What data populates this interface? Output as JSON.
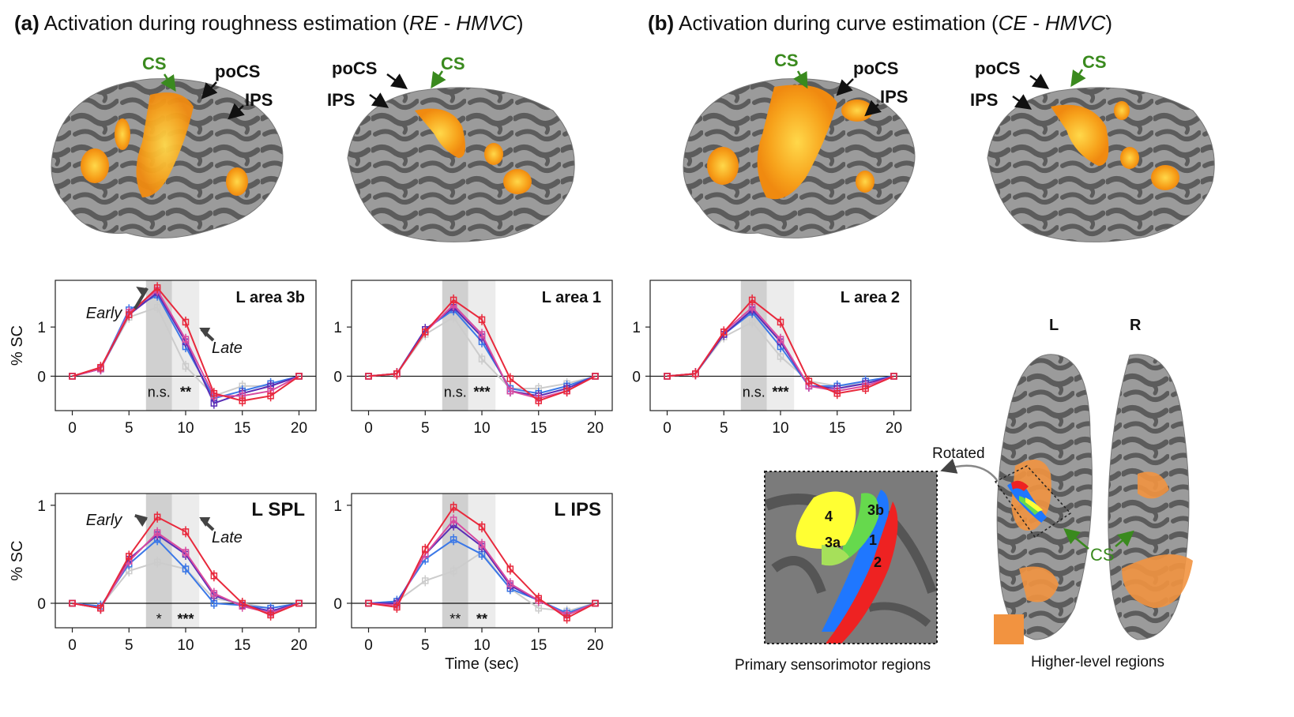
{
  "panel_a": {
    "letter": "(a)",
    "title": "Activation during roughness estimation (",
    "contrast": "RE - HMVC",
    "close": ")"
  },
  "panel_b": {
    "letter": "(b)",
    "title": "Activation during curve estimation (",
    "contrast": "CE - HMVC",
    "close": ")"
  },
  "brain_labels": {
    "cs": "CS",
    "pocs": "poCS",
    "ips": "IPS"
  },
  "colors": {
    "cs_green": "#3a8a1e",
    "activation": "#f7a21b",
    "cortex_light": "#9a9a9a",
    "cortex_dark": "#5a5a5a",
    "area_4": "#ffff33",
    "area_3a": "#a6e05a",
    "area_3b": "#66d94d",
    "area_1": "#1f77ff",
    "area_2": "#ee2222",
    "higher": "#f29340"
  },
  "axes": {
    "ylabel": "% SC",
    "xlabel": "Time (sec)",
    "xticks": [
      "0",
      "5",
      "10",
      "15",
      "20"
    ]
  },
  "chart_data": [
    {
      "type": "line",
      "title": "L area 3b",
      "x": [
        0,
        2.5,
        5,
        7.5,
        10,
        12.5,
        15,
        17.5,
        20
      ],
      "ylim": [
        -0.7,
        1.95
      ],
      "yticks": [
        "0",
        "1"
      ],
      "annotations": {
        "early": "Early",
        "late": "Late",
        "sig_early": "n.s.",
        "sig_late": "**"
      },
      "series": [
        {
          "color": "#cccccc",
          "values": [
            0,
            0.15,
            1.2,
            1.4,
            0.2,
            -0.4,
            -0.2,
            -0.2,
            0
          ]
        },
        {
          "color": "#3b78e7",
          "values": [
            0,
            0.15,
            1.35,
            1.65,
            0.6,
            -0.45,
            -0.3,
            -0.15,
            0
          ]
        },
        {
          "color": "#5a2db5",
          "values": [
            0,
            0.15,
            1.25,
            1.7,
            0.7,
            -0.55,
            -0.35,
            -0.2,
            0
          ]
        },
        {
          "color": "#d94ba0",
          "values": [
            0,
            0.15,
            1.3,
            1.75,
            0.75,
            -0.4,
            -0.4,
            -0.3,
            0
          ]
        },
        {
          "color": "#e8293c",
          "values": [
            0,
            0.18,
            1.25,
            1.8,
            1.1,
            -0.35,
            -0.5,
            -0.4,
            0
          ]
        }
      ]
    },
    {
      "type": "line",
      "title": "L area 1",
      "x": [
        0,
        2.5,
        5,
        7.5,
        10,
        12.5,
        15,
        17.5,
        20
      ],
      "ylim": [
        -0.7,
        1.95
      ],
      "yticks": [
        "0",
        "1"
      ],
      "annotations": {
        "sig_early": "n.s.",
        "sig_late": "***"
      },
      "series": [
        {
          "color": "#cccccc",
          "values": [
            0,
            0.05,
            0.85,
            1.2,
            0.35,
            -0.25,
            -0.25,
            -0.15,
            0
          ]
        },
        {
          "color": "#3b78e7",
          "values": [
            0,
            0.05,
            0.95,
            1.35,
            0.7,
            -0.25,
            -0.35,
            -0.2,
            0
          ]
        },
        {
          "color": "#5a2db5",
          "values": [
            0,
            0.05,
            0.95,
            1.4,
            0.8,
            -0.3,
            -0.4,
            -0.25,
            0
          ]
        },
        {
          "color": "#d94ba0",
          "values": [
            0,
            0.05,
            0.9,
            1.45,
            0.85,
            -0.3,
            -0.45,
            -0.3,
            0
          ]
        },
        {
          "color": "#e8293c",
          "values": [
            0,
            0.05,
            0.9,
            1.55,
            1.15,
            -0.05,
            -0.5,
            -0.3,
            0
          ]
        }
      ]
    },
    {
      "type": "line",
      "title": "L area 2",
      "x": [
        0,
        2.5,
        5,
        7.5,
        10,
        12.5,
        15,
        17.5,
        20
      ],
      "ylim": [
        -0.7,
        1.95
      ],
      "yticks": [
        "0",
        "1"
      ],
      "annotations": {
        "sig_early": "n.s.",
        "sig_late": "***"
      },
      "series": [
        {
          "color": "#cccccc",
          "values": [
            0,
            0.05,
            0.8,
            1.1,
            0.4,
            -0.1,
            -0.2,
            -0.15,
            0
          ]
        },
        {
          "color": "#3b78e7",
          "values": [
            0,
            0.05,
            0.85,
            1.3,
            0.6,
            -0.2,
            -0.2,
            -0.1,
            0
          ]
        },
        {
          "color": "#5a2db5",
          "values": [
            0,
            0.05,
            0.85,
            1.35,
            0.7,
            -0.2,
            -0.25,
            -0.15,
            0
          ]
        },
        {
          "color": "#d94ba0",
          "values": [
            0,
            0.05,
            0.9,
            1.4,
            0.75,
            -0.2,
            -0.3,
            -0.2,
            0
          ]
        },
        {
          "color": "#e8293c",
          "values": [
            0,
            0.05,
            0.9,
            1.55,
            1.1,
            -0.1,
            -0.35,
            -0.25,
            0
          ]
        }
      ]
    },
    {
      "type": "line",
      "title": "L SPL",
      "x": [
        0,
        2.5,
        5,
        7.5,
        10,
        12.5,
        15,
        17.5,
        20
      ],
      "ylim": [
        -0.25,
        1.12
      ],
      "yticks": [
        "0",
        "1"
      ],
      "annotations": {
        "early": "Early",
        "late": "Late",
        "sig_early": "*",
        "sig_late": "***"
      },
      "series": [
        {
          "color": "#cccccc",
          "values": [
            0,
            -0.03,
            0.33,
            0.42,
            0.35,
            0.05,
            0,
            -0.05,
            0
          ]
        },
        {
          "color": "#3b78e7",
          "values": [
            0,
            -0.03,
            0.4,
            0.65,
            0.35,
            0,
            -0.02,
            -0.05,
            0
          ]
        },
        {
          "color": "#5a2db5",
          "values": [
            0,
            -0.05,
            0.45,
            0.7,
            0.5,
            0.08,
            -0.02,
            -0.08,
            0
          ]
        },
        {
          "color": "#d94ba0",
          "values": [
            0,
            -0.05,
            0.43,
            0.72,
            0.52,
            0.1,
            -0.03,
            -0.1,
            0
          ]
        },
        {
          "color": "#e8293c",
          "values": [
            0,
            -0.05,
            0.48,
            0.88,
            0.73,
            0.28,
            0,
            -0.12,
            0
          ]
        }
      ]
    },
    {
      "type": "line",
      "title": "L IPS",
      "x": [
        0,
        2.5,
        5,
        7.5,
        10,
        12.5,
        15,
        17.5,
        20
      ],
      "ylim": [
        -0.25,
        1.12
      ],
      "yticks": [
        "0",
        "1"
      ],
      "annotations": {
        "sig_early": "**",
        "sig_late": "**"
      },
      "series": [
        {
          "color": "#cccccc",
          "values": [
            0,
            0.02,
            0.23,
            0.33,
            0.52,
            0.15,
            -0.05,
            -0.08,
            0
          ]
        },
        {
          "color": "#3b78e7",
          "values": [
            0,
            0.02,
            0.45,
            0.65,
            0.5,
            0.15,
            0.03,
            -0.1,
            0
          ]
        },
        {
          "color": "#5a2db5",
          "values": [
            0,
            0,
            0.5,
            0.8,
            0.58,
            0.18,
            0.03,
            -0.12,
            0
          ]
        },
        {
          "color": "#d94ba0",
          "values": [
            0,
            -0.02,
            0.5,
            0.85,
            0.6,
            0.2,
            0.03,
            -0.12,
            0
          ]
        },
        {
          "color": "#e8293c",
          "values": [
            0,
            -0.04,
            0.55,
            0.98,
            0.78,
            0.35,
            0.05,
            -0.15,
            0
          ]
        }
      ]
    }
  ],
  "flatmap": {
    "l": "L",
    "r": "R",
    "rotated": "Rotated",
    "cs": "CS",
    "areas": [
      "4",
      "3b",
      "3a",
      "1",
      "2"
    ],
    "caption_left": "Primary sensorimotor regions",
    "caption_right": "Higher-level regions"
  }
}
